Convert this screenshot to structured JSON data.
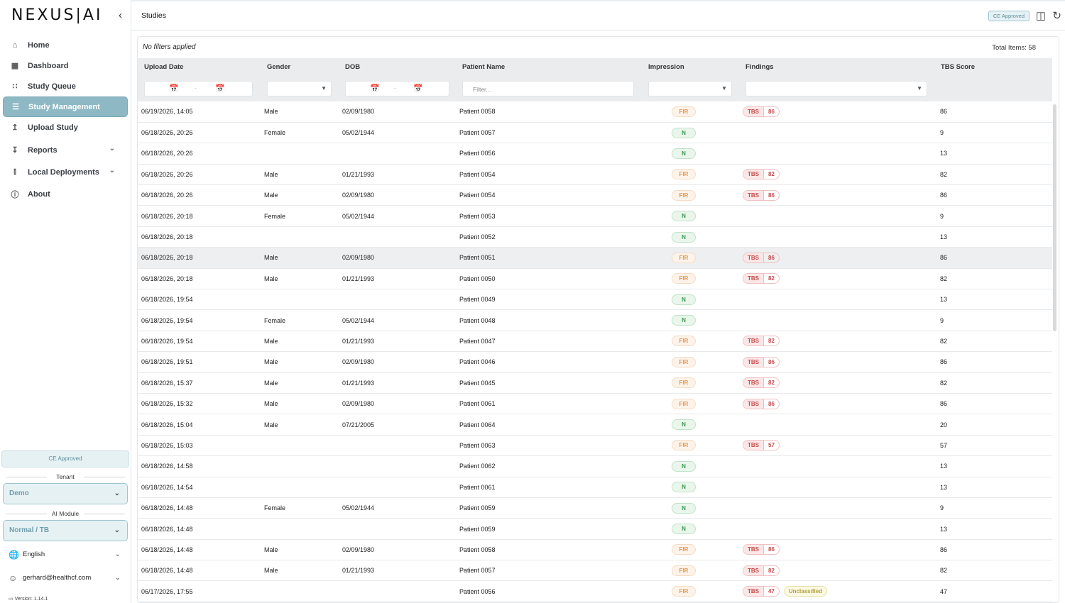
{
  "app": {
    "logo": "NEXUS|AI"
  },
  "sidebar": {
    "items": [
      {
        "label": "Home",
        "icon": "home-icon"
      },
      {
        "label": "Dashboard",
        "icon": "dashboard-icon"
      },
      {
        "label": "Study Queue",
        "icon": "rss-icon"
      },
      {
        "label": "Study Management",
        "icon": "list-icon",
        "active": true
      },
      {
        "label": "Upload Study",
        "icon": "upload-icon"
      },
      {
        "label": "Reports",
        "icon": "download-icon",
        "expandable": true
      },
      {
        "label": "Local Deployments",
        "icon": "bar-chart-icon",
        "expandable": true
      },
      {
        "label": "About",
        "icon": "info-icon"
      }
    ],
    "ce_badge": "CE Approved",
    "tenant_label": "Tenant",
    "tenant_value": "Demo",
    "module_label": "AI Module",
    "module_value": "Normal / TB",
    "language": "English",
    "user": "gerhard@healthcf.com",
    "version_label": "Version:",
    "version_value": "1.14.1"
  },
  "header": {
    "title": "Studies",
    "ce_badge": "CE Approved"
  },
  "table": {
    "filters_text": "No filters applied",
    "total_items": "Total Items: 58",
    "columns": [
      "Upload Date",
      "Gender",
      "DOB",
      "Patient Name",
      "Impression",
      "Findings",
      "TBS Score"
    ],
    "name_filter_placeholder": "Filter...",
    "rows": [
      {
        "date": "06/19/2026, 14:05",
        "gender": "Male",
        "dob": "02/09/1980",
        "name": "Patient 0058",
        "imp": "FIR",
        "tbs": "86",
        "score": "86"
      },
      {
        "date": "06/18/2026, 20:26",
        "gender": "Female",
        "dob": "05/02/1944",
        "name": "Patient 0057",
        "imp": "N",
        "tbs": "",
        "score": "9"
      },
      {
        "date": "06/18/2026, 20:26",
        "gender": "",
        "dob": "",
        "name": "Patient 0056",
        "imp": "N",
        "tbs": "",
        "score": "13"
      },
      {
        "date": "06/18/2026, 20:26",
        "gender": "Male",
        "dob": "01/21/1993",
        "name": "Patient 0054",
        "imp": "FIR",
        "tbs": "82",
        "score": "82"
      },
      {
        "date": "06/18/2026, 20:26",
        "gender": "Male",
        "dob": "02/09/1980",
        "name": "Patient 0054",
        "imp": "FIR",
        "tbs": "86",
        "score": "86"
      },
      {
        "date": "06/18/2026, 20:18",
        "gender": "Female",
        "dob": "05/02/1944",
        "name": "Patient 0053",
        "imp": "N",
        "tbs": "",
        "score": "9"
      },
      {
        "date": "06/18/2026, 20:18",
        "gender": "",
        "dob": "",
        "name": "Patient 0052",
        "imp": "N",
        "tbs": "",
        "score": "13"
      },
      {
        "date": "06/18/2026, 20:18",
        "gender": "Male",
        "dob": "02/09/1980",
        "name": "Patient 0051",
        "imp": "FIR",
        "tbs": "86",
        "score": "86",
        "highlight": true
      },
      {
        "date": "06/18/2026, 20:18",
        "gender": "Male",
        "dob": "01/21/1993",
        "name": "Patient 0050",
        "imp": "FIR",
        "tbs": "82",
        "score": "82"
      },
      {
        "date": "06/18/2026, 19:54",
        "gender": "",
        "dob": "",
        "name": "Patient 0049",
        "imp": "N",
        "tbs": "",
        "score": "13"
      },
      {
        "date": "06/18/2026, 19:54",
        "gender": "Female",
        "dob": "05/02/1944",
        "name": "Patient 0048",
        "imp": "N",
        "tbs": "",
        "score": "9"
      },
      {
        "date": "06/18/2026, 19:54",
        "gender": "Male",
        "dob": "01/21/1993",
        "name": "Patient 0047",
        "imp": "FIR",
        "tbs": "82",
        "score": "82"
      },
      {
        "date": "06/18/2026, 19:51",
        "gender": "Male",
        "dob": "02/09/1980",
        "name": "Patient 0046",
        "imp": "FIR",
        "tbs": "86",
        "score": "86"
      },
      {
        "date": "06/18/2026, 15:37",
        "gender": "Male",
        "dob": "01/21/1993",
        "name": "Patient 0045",
        "imp": "FIR",
        "tbs": "82",
        "score": "82"
      },
      {
        "date": "06/18/2026, 15:32",
        "gender": "Male",
        "dob": "02/09/1980",
        "name": "Patient 0061",
        "imp": "FIR",
        "tbs": "86",
        "score": "86"
      },
      {
        "date": "06/18/2026, 15:04",
        "gender": "Male",
        "dob": "07/21/2005",
        "name": "Patient 0064",
        "imp": "N",
        "tbs": "",
        "score": "20"
      },
      {
        "date": "06/18/2026, 15:03",
        "gender": "",
        "dob": "",
        "name": "Patient 0063",
        "imp": "FIR",
        "tbs": "57",
        "score": "57"
      },
      {
        "date": "06/18/2026, 14:58",
        "gender": "",
        "dob": "",
        "name": "Patient 0062",
        "imp": "N",
        "tbs": "",
        "score": "13"
      },
      {
        "date": "06/18/2026, 14:54",
        "gender": "",
        "dob": "",
        "name": "Patient 0061",
        "imp": "N",
        "tbs": "",
        "score": "13"
      },
      {
        "date": "06/18/2026, 14:48",
        "gender": "Female",
        "dob": "05/02/1944",
        "name": "Patient 0059",
        "imp": "N",
        "tbs": "",
        "score": "9"
      },
      {
        "date": "06/18/2026, 14:48",
        "gender": "",
        "dob": "",
        "name": "Patient 0059",
        "imp": "N",
        "tbs": "",
        "score": "13"
      },
      {
        "date": "06/18/2026, 14:48",
        "gender": "Male",
        "dob": "02/09/1980",
        "name": "Patient 0058",
        "imp": "FIR",
        "tbs": "86",
        "score": "86"
      },
      {
        "date": "06/18/2026, 14:48",
        "gender": "Male",
        "dob": "01/21/1993",
        "name": "Patient 0057",
        "imp": "FIR",
        "tbs": "82",
        "score": "82"
      },
      {
        "date": "06/17/2026, 17:55",
        "gender": "",
        "dob": "",
        "name": "Patient 0056",
        "imp": "FIR",
        "tbs": "47",
        "score": "47",
        "extra": "Unclassified"
      }
    ],
    "tbs_label": "TBS"
  },
  "colors": {
    "accent": "#8eb8c4",
    "fir": "#e39a52",
    "normal": "#3d9a52",
    "tbs": "#c94a4a"
  }
}
